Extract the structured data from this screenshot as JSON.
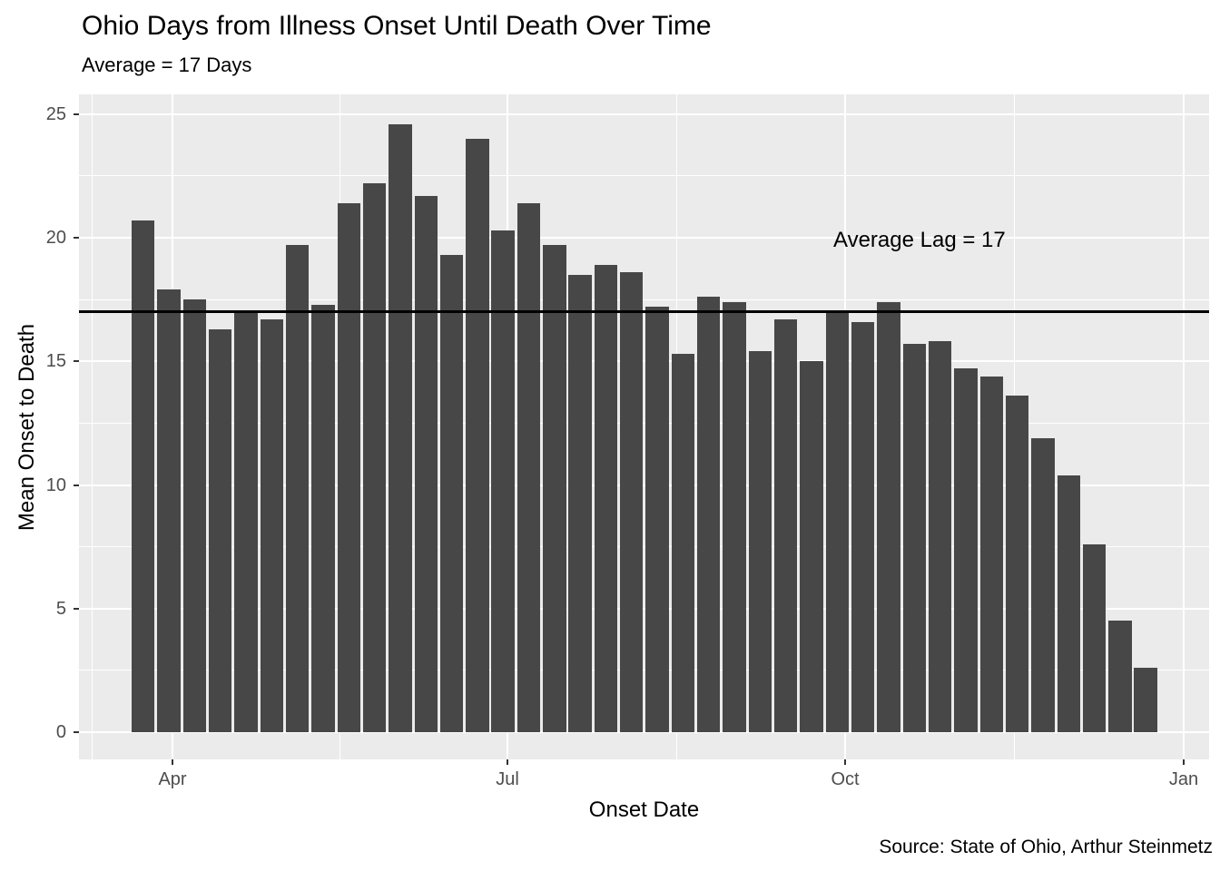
{
  "header": {
    "title": "Ohio Days from Illness Onset Until Death Over Time",
    "subtitle": "Average = 17 Days"
  },
  "footer": {
    "source": "Source: State of Ohio, Arthur Steinmetz"
  },
  "colors": {
    "bar": "#474747",
    "panel_background": "#EBEBEB",
    "gridline": "#FFFFFF",
    "average_line": "#000000",
    "axis_text": "#4D4D4D",
    "tick_mark": "#333333",
    "title_text": "#000000"
  },
  "chart_data": {
    "type": "bar",
    "title": "Ohio Days from Illness Onset Until Death Over Time",
    "subtitle": "Average = 17 Days",
    "xlabel": "Onset Date",
    "ylabel": "Mean Onset to Death",
    "legend_position": "none",
    "grid": true,
    "panel_value_range": [
      -1.1,
      25.8
    ],
    "y_ticks": [
      0,
      5,
      10,
      15,
      20,
      25
    ],
    "y_tick_labels": [
      "0",
      "5",
      "10",
      "15",
      "20",
      "25"
    ],
    "y_minor_ticks": [
      2.5,
      7.5,
      12.5,
      17.5,
      22.5
    ],
    "x_tick_labels": [
      "Apr",
      "Jul",
      "Oct",
      "Jan"
    ],
    "average_line": {
      "value": 17,
      "label": "Average Lag = 17"
    },
    "bin_width_days": 7,
    "week_start_estimate": [
      "Mar 22",
      "Mar 29",
      "Apr 5",
      "Apr 12",
      "Apr 19",
      "Apr 26",
      "May 3",
      "May 10",
      "May 17",
      "May 24",
      "May 31",
      "Jun 7",
      "Jun 14",
      "Jun 21",
      "Jun 28",
      "Jul 5",
      "Jul 12",
      "Jul 19",
      "Jul 26",
      "Aug 2",
      "Aug 9",
      "Aug 16",
      "Aug 23",
      "Aug 30",
      "Sep 6",
      "Sep 13",
      "Sep 20",
      "Sep 27",
      "Oct 4",
      "Oct 11",
      "Oct 18",
      "Oct 25",
      "Nov 1",
      "Nov 8",
      "Nov 15",
      "Nov 22",
      "Nov 29",
      "Dec 6",
      "Dec 13",
      "Dec 20"
    ],
    "values": [
      20.7,
      17.9,
      17.5,
      16.3,
      17.0,
      16.7,
      19.7,
      17.3,
      21.4,
      22.2,
      24.6,
      21.7,
      19.3,
      24.0,
      20.3,
      21.4,
      19.7,
      18.5,
      18.9,
      18.6,
      17.2,
      15.3,
      17.6,
      17.4,
      15.4,
      16.7,
      15.0,
      17.0,
      16.6,
      17.4,
      15.7,
      15.8,
      14.7,
      14.4,
      13.6,
      11.9,
      10.4,
      7.6,
      4.5,
      2.6
    ]
  }
}
